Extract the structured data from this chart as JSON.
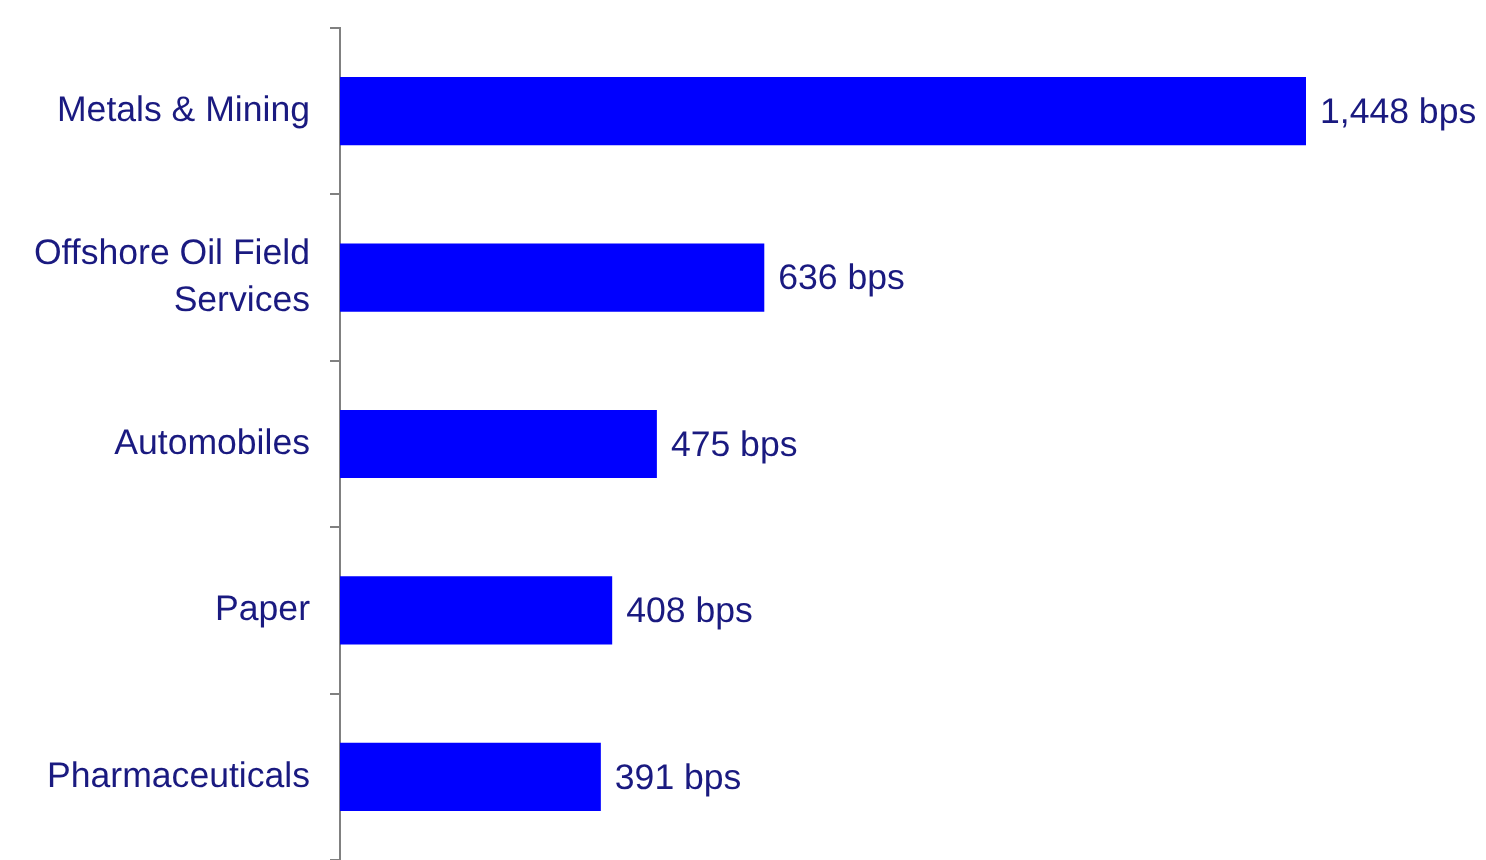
{
  "chart_data": {
    "type": "bar",
    "orientation": "horizontal",
    "categories": [
      "Metals & Mining",
      "Offshore Oil Field Services",
      "Automobiles",
      "Paper",
      "Pharmaceuticals"
    ],
    "values": [
      1448,
      636,
      475,
      408,
      391
    ],
    "color": "#0000ff",
    "value_labels": [
      "1,448 bps",
      "636 bps",
      "475 bps",
      "408 bps",
      "391 bps"
    ],
    "tick_labels": "y"
  }
}
